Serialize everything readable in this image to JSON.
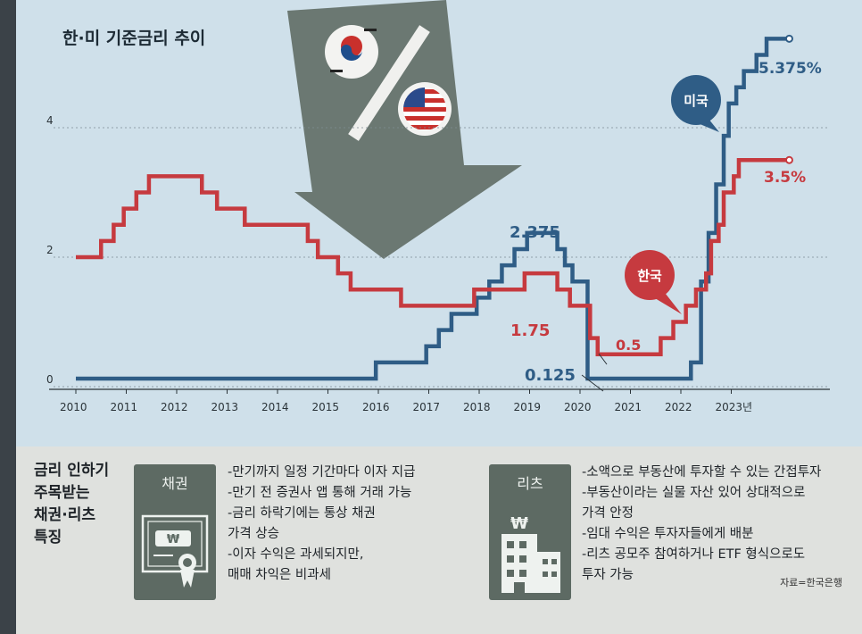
{
  "chart_data": {
    "type": "line",
    "title": "한·미 기준금리 추이",
    "x_tick_labels": [
      "2010",
      "2011",
      "2012",
      "2013",
      "2014",
      "2015",
      "2016",
      "2017",
      "2018",
      "2019",
      "2020",
      "2021",
      "2022",
      "2023년"
    ],
    "y_tick_labels": [
      "0",
      "2",
      "4"
    ],
    "ylim": [
      0,
      6
    ],
    "grid": true,
    "series": [
      {
        "name": "미국",
        "color": "#2f5d86",
        "points": [
          [
            2010.0,
            0.125
          ],
          [
            2015.95,
            0.375
          ],
          [
            2016.95,
            0.625
          ],
          [
            2017.2,
            0.875
          ],
          [
            2017.45,
            1.125
          ],
          [
            2017.95,
            1.375
          ],
          [
            2018.2,
            1.625
          ],
          [
            2018.45,
            1.875
          ],
          [
            2018.7,
            2.125
          ],
          [
            2018.95,
            2.375
          ],
          [
            2019.55,
            2.125
          ],
          [
            2019.7,
            1.875
          ],
          [
            2019.85,
            1.625
          ],
          [
            2020.15,
            0.125
          ],
          [
            2022.2,
            0.375
          ],
          [
            2022.4,
            1.625
          ],
          [
            2022.55,
            2.375
          ],
          [
            2022.7,
            3.125
          ],
          [
            2022.85,
            3.875
          ],
          [
            2022.95,
            4.375
          ],
          [
            2023.1,
            4.625
          ],
          [
            2023.25,
            4.875
          ],
          [
            2023.5,
            5.125
          ],
          [
            2023.7,
            5.375
          ],
          [
            2024.15,
            5.375
          ]
        ],
        "end_label": "5.375%",
        "peak_label": "2.375",
        "low_label": "0.125"
      },
      {
        "name": "한국",
        "color": "#c63a3f",
        "points": [
          [
            2010.0,
            2.0
          ],
          [
            2010.5,
            2.25
          ],
          [
            2010.75,
            2.5
          ],
          [
            2010.95,
            2.75
          ],
          [
            2011.2,
            3.0
          ],
          [
            2011.45,
            3.25
          ],
          [
            2012.5,
            3.0
          ],
          [
            2012.8,
            2.75
          ],
          [
            2013.35,
            2.5
          ],
          [
            2014.6,
            2.25
          ],
          [
            2014.8,
            2.0
          ],
          [
            2015.2,
            1.75
          ],
          [
            2015.45,
            1.5
          ],
          [
            2016.45,
            1.25
          ],
          [
            2017.9,
            1.5
          ],
          [
            2018.9,
            1.75
          ],
          [
            2019.55,
            1.5
          ],
          [
            2019.8,
            1.25
          ],
          [
            2020.2,
            0.75
          ],
          [
            2020.35,
            0.5
          ],
          [
            2021.6,
            0.75
          ],
          [
            2021.85,
            1.0
          ],
          [
            2022.1,
            1.25
          ],
          [
            2022.3,
            1.5
          ],
          [
            2022.5,
            1.75
          ],
          [
            2022.6,
            2.25
          ],
          [
            2022.75,
            2.5
          ],
          [
            2022.85,
            3.0
          ],
          [
            2023.05,
            3.25
          ],
          [
            2023.15,
            3.5
          ],
          [
            2024.15,
            3.5
          ]
        ],
        "end_label": "3.5%",
        "mid_label": "1.75",
        "low_label": "0.5"
      }
    ]
  },
  "bubbles": {
    "us": "미국",
    "kr": "한국"
  },
  "features": {
    "title_lines": [
      "금리 인하기",
      "주목받는",
      "채권·리츠",
      "특징"
    ],
    "bond": {
      "label": "채권",
      "icon": "bond-certificate-icon",
      "bullets": [
        "-만기까지 일정 기간마다 이자 지급",
        "-만기 전 증권사 앱 통해 거래 가능",
        "-금리 하락기에는 통상 채권",
        "  가격 상승",
        "-이자 수익은 과세되지만,",
        "  매매 차익은 비과세"
      ]
    },
    "reit": {
      "label": "리츠",
      "icon": "building-icon",
      "bullets": [
        "-소액으로 부동산에 투자할 수 있는 간접투자",
        "-부동산이라는 실물 자산 있어 상대적으로",
        "  가격 안정",
        "-임대 수익은 투자자들에게 배분",
        "-리츠 공모주 참여하거나 ETF 형식으로도",
        "  투자 가능"
      ]
    }
  },
  "source": "자료=한국은행"
}
